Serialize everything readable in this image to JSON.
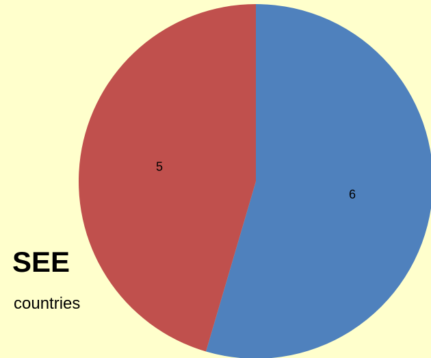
{
  "chart_data": {
    "type": "pie",
    "slices": [
      {
        "label": "6",
        "value": 6,
        "color": "#4f81bd"
      },
      {
        "label": "5",
        "value": 5,
        "color": "#c0504d"
      }
    ],
    "start_angle_deg": 0,
    "direction": "clockwise",
    "title": "",
    "legend": "none"
  },
  "annotation": {
    "heading": "SEE",
    "subtext": "countries"
  },
  "colors": {
    "background": "#ffffcc"
  }
}
